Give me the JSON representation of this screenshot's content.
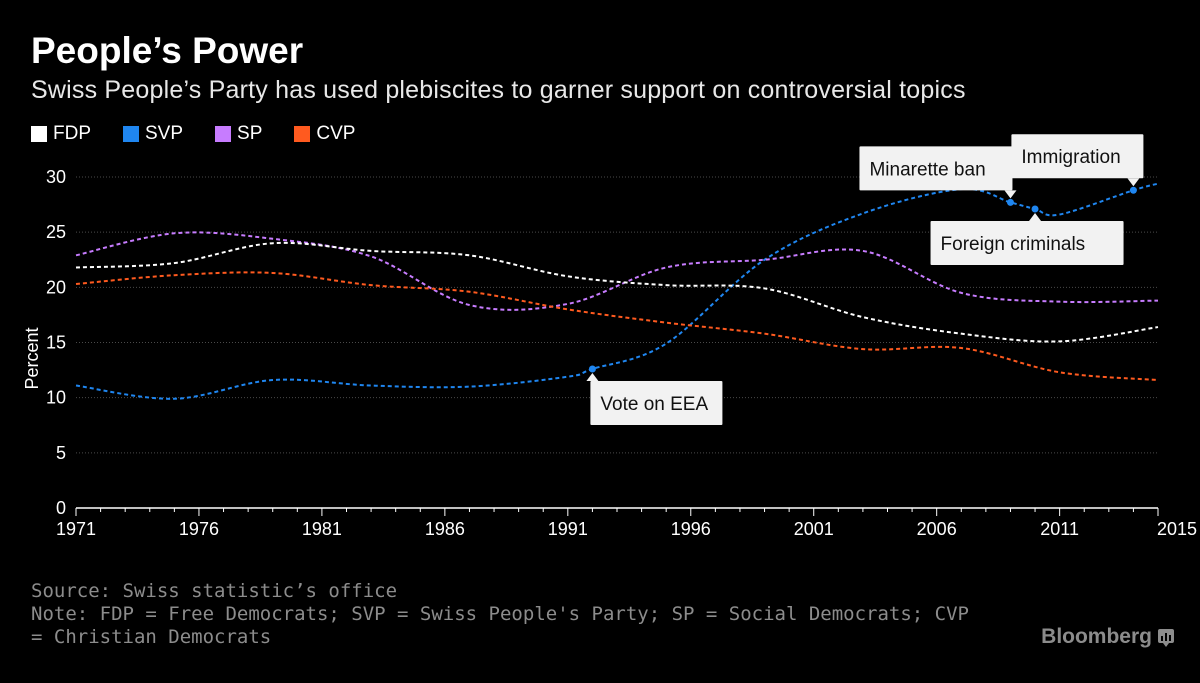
{
  "header": {
    "title": "People’s Power",
    "subtitle": "Swiss People’s Party has used plebiscites to garner support on controversial topics"
  },
  "legend": [
    {
      "label": "FDP",
      "color": "#ffffff"
    },
    {
      "label": "SVP",
      "color": "#1f86f0"
    },
    {
      "label": "SP",
      "color": "#c77cff"
    },
    {
      "label": "CVP",
      "color": "#ff5a1f"
    }
  ],
  "chart_data": {
    "type": "line",
    "ylabel": "Percent",
    "xlabel": "",
    "ylim": [
      0,
      30
    ],
    "xlim": [
      1971,
      2015
    ],
    "yticks": [
      0,
      5,
      10,
      15,
      20,
      25,
      30
    ],
    "xticks": [
      1971,
      1976,
      1981,
      1986,
      1991,
      1996,
      2001,
      2006,
      2011,
      2015
    ],
    "grid": true,
    "legend_position": "top-left",
    "line_style": "dashed",
    "series": [
      {
        "name": "FDP",
        "color": "#ffffff",
        "x": [
          1971,
          1975,
          1979,
          1983,
          1987,
          1991,
          1995,
          1999,
          2003,
          2007,
          2011,
          2015
        ],
        "y": [
          21.8,
          22.2,
          24.0,
          23.3,
          22.9,
          21.0,
          20.2,
          19.9,
          17.3,
          15.8,
          15.1,
          16.4
        ]
      },
      {
        "name": "SVP",
        "color": "#1f86f0",
        "x": [
          1971,
          1975,
          1979,
          1983,
          1987,
          1991,
          1992,
          1995,
          1999,
          2003,
          2007,
          2009,
          2010,
          2011,
          2014,
          2015
        ],
        "y": [
          11.1,
          9.9,
          11.6,
          11.1,
          11.0,
          11.9,
          12.6,
          14.9,
          22.5,
          26.7,
          28.9,
          27.7,
          27.1,
          26.6,
          28.8,
          29.4
        ]
      },
      {
        "name": "SP",
        "color": "#c77cff",
        "x": [
          1971,
          1975,
          1979,
          1983,
          1987,
          1991,
          1995,
          1999,
          2003,
          2007,
          2011,
          2015
        ],
        "y": [
          22.9,
          24.9,
          24.4,
          22.8,
          18.4,
          18.5,
          21.8,
          22.5,
          23.3,
          19.5,
          18.7,
          18.8
        ]
      },
      {
        "name": "CVP",
        "color": "#ff5a1f",
        "x": [
          1971,
          1975,
          1979,
          1983,
          1987,
          1991,
          1995,
          1999,
          2003,
          2007,
          2011,
          2015
        ],
        "y": [
          20.3,
          21.1,
          21.3,
          20.2,
          19.6,
          18.0,
          16.8,
          15.8,
          14.4,
          14.5,
          12.3,
          11.6
        ]
      }
    ],
    "annotations": [
      {
        "label": "Vote on EEA",
        "x": 1992,
        "y": 12.6,
        "box_side": "below"
      },
      {
        "label": "Minarette ban",
        "x": 2009,
        "y": 27.7,
        "box_side": "above"
      },
      {
        "label": "Immigration",
        "x": 2014,
        "y": 28.8,
        "box_side": "above"
      },
      {
        "label": "Foreign criminals",
        "x": 2010,
        "y": 27.1,
        "box_side": "below"
      }
    ]
  },
  "footer": {
    "source": "Source: Swiss statistic’s office",
    "note": "Note: FDP = Free Democrats; SVP = Swiss People's Party; SP = Social Democrats; CVP = Christian Democrats"
  },
  "brand": {
    "name": "Bloomberg"
  }
}
